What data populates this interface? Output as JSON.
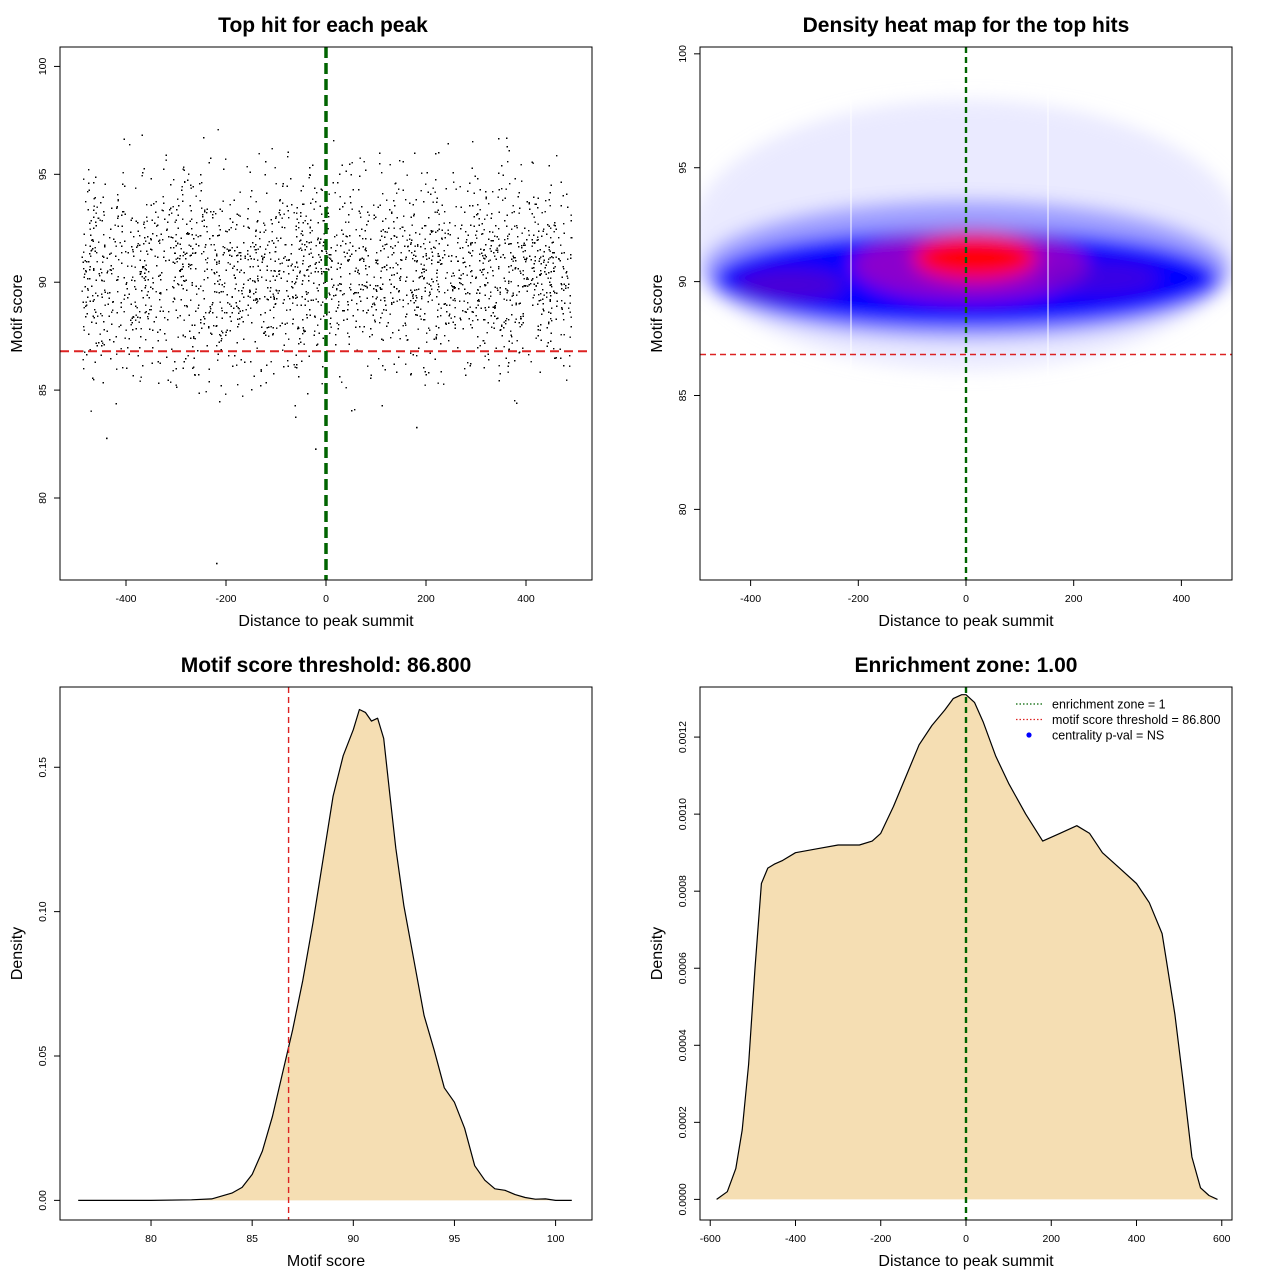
{
  "chart_data": [
    {
      "type": "scatter",
      "title": "Top hit for each peak",
      "xlabel": "Distance to peak summit",
      "ylabel": "Motif score",
      "xlim": [
        -532,
        532
      ],
      "ylim": [
        76.2,
        100.9
      ],
      "xticks": [
        "-400",
        "-200",
        "0",
        "200",
        "400"
      ],
      "xtick_values": [
        -400,
        -200,
        0,
        200,
        400
      ],
      "yticks": [
        "80",
        "85",
        "90",
        "95",
        "100"
      ],
      "ytick_values": [
        80,
        85,
        90,
        95,
        100
      ],
      "points_description_only": false,
      "point_count": 6000,
      "x_range": [
        -490,
        490
      ],
      "score_center": 90.6,
      "score_sd": 2.4,
      "outliers": [
        {
          "x": -220,
          "y": 77.0
        },
        {
          "x": -22,
          "y": 82.3
        },
        {
          "x": -440,
          "y": 82.8
        },
        {
          "x": 180,
          "y": 83.3
        }
      ],
      "vline": {
        "x": 0,
        "color": "#006400",
        "style": "dashed"
      },
      "hline": {
        "y": 86.8,
        "color": "#dd2222",
        "style": "dashed"
      },
      "point_color": "#000000",
      "grid": false
    },
    {
      "type": "heatmap",
      "title": "Density heat map for the top hits",
      "xlabel": "Distance to peak summit",
      "ylabel": "Motif score",
      "xlim": [
        -494,
        494
      ],
      "ylim": [
        76.9,
        100.3
      ],
      "xticks": [
        "-400",
        "-200",
        "0",
        "200",
        "400"
      ],
      "xtick_values": [
        -400,
        -200,
        0,
        200,
        400
      ],
      "yticks": [
        "80",
        "85",
        "90",
        "95",
        "100"
      ],
      "ytick_values": [
        80,
        85,
        90,
        95,
        100
      ],
      "density_peak": {
        "x": 10,
        "y": 90.8
      },
      "colors": [
        "#ffffff",
        "#0000ff",
        "#ff0000"
      ],
      "vline": {
        "x": 0,
        "color": "#006400",
        "style": "dashed"
      },
      "hline": {
        "y": 86.8,
        "color": "#dd2222",
        "style": "dashed"
      },
      "grid": false
    },
    {
      "type": "area",
      "title": "Motif score threshold: 86.800",
      "xlabel": "Motif score",
      "ylabel": "Density",
      "xlim": [
        75.5,
        101.8
      ],
      "ylim": [
        -0.0068,
        0.1778
      ],
      "xticks": [
        "80",
        "85",
        "90",
        "95",
        "100"
      ],
      "xtick_values": [
        80,
        85,
        90,
        95,
        100
      ],
      "yticks": [
        "0.00",
        "0.05",
        "0.10",
        "0.15"
      ],
      "ytick_values": [
        0.0,
        0.05,
        0.1,
        0.15
      ],
      "x": [
        76.4,
        80,
        82,
        83,
        84,
        84.5,
        85,
        85.5,
        86,
        86.5,
        87,
        87.5,
        88,
        88.5,
        89,
        89.5,
        90,
        90.3,
        90.6,
        90.9,
        91.2,
        91.5,
        91.8,
        92.1,
        92.5,
        93,
        93.5,
        94,
        94.5,
        95,
        95.5,
        96,
        96.5,
        97,
        97.5,
        98,
        98.5,
        99,
        99.5,
        100,
        100.8
      ],
      "y": [
        0.0,
        0.0,
        0.0002,
        0.0005,
        0.0025,
        0.0045,
        0.009,
        0.017,
        0.029,
        0.044,
        0.059,
        0.076,
        0.096,
        0.118,
        0.14,
        0.154,
        0.163,
        0.17,
        0.169,
        0.166,
        0.167,
        0.16,
        0.141,
        0.122,
        0.102,
        0.083,
        0.064,
        0.052,
        0.039,
        0.034,
        0.025,
        0.012,
        0.007,
        0.004,
        0.0035,
        0.002,
        0.001,
        0.0004,
        0.0005,
        0.0,
        0.0
      ],
      "fill": "#f5deb3",
      "vline": {
        "x": 86.8,
        "color": "#dd2222",
        "style": "dashed"
      },
      "grid": false
    },
    {
      "type": "area",
      "title": "Enrichment zone: 1.00",
      "xlabel": "Distance to peak summit",
      "ylabel": "Density",
      "xlim": [
        -624,
        624
      ],
      "ylim": [
        -5.35e-05,
        0.00133
      ],
      "xticks": [
        "-600",
        "-400",
        "-200",
        "0",
        "200",
        "400",
        "600"
      ],
      "xtick_values": [
        -600,
        -400,
        -200,
        0,
        200,
        400,
        600
      ],
      "yticks": [
        "0.0000",
        "0.0002",
        "0.0004",
        "0.0006",
        "0.0008",
        "0.0010",
        "0.0012"
      ],
      "ytick_values": [
        0.0,
        0.0002,
        0.0004,
        0.0006,
        0.0008,
        0.001,
        0.0012
      ],
      "x": [
        -585,
        -560,
        -540,
        -525,
        -510,
        -495,
        -480,
        -465,
        -450,
        -430,
        -400,
        -350,
        -300,
        -250,
        -220,
        -200,
        -170,
        -140,
        -110,
        -80,
        -50,
        -30,
        -10,
        0,
        20,
        40,
        70,
        100,
        140,
        180,
        220,
        260,
        290,
        320,
        360,
        400,
        430,
        460,
        470,
        490,
        510,
        530,
        550,
        570,
        590
      ],
      "y": [
        0.0,
        2e-05,
        8e-05,
        0.00018,
        0.00035,
        0.0006,
        0.00082,
        0.00086,
        0.00087,
        0.00088,
        0.0009,
        0.00091,
        0.00092,
        0.00092,
        0.00093,
        0.00095,
        0.00102,
        0.0011,
        0.00118,
        0.00123,
        0.00127,
        0.0013,
        0.00131,
        0.00131,
        0.00129,
        0.00124,
        0.00115,
        0.00108,
        0.001,
        0.00093,
        0.00095,
        0.00097,
        0.00095,
        0.0009,
        0.00086,
        0.00082,
        0.00077,
        0.00069,
        0.00062,
        0.00048,
        0.0003,
        0.00011,
        3e-05,
        1e-05,
        0.0
      ],
      "fill": "#f5deb3",
      "vline": {
        "x": 0,
        "color": "#006400",
        "style": "dashed"
      },
      "legend": [
        {
          "label": "enrichment zone = 1",
          "color": "#006400",
          "kind": "line"
        },
        {
          "label": "motif score threshold = 86.800",
          "color": "#dd2222",
          "kind": "line"
        },
        {
          "label": "centrality p-val = NS",
          "color": "#0000ff",
          "kind": "point"
        }
      ],
      "legend_position": "top-right",
      "grid": false
    }
  ]
}
